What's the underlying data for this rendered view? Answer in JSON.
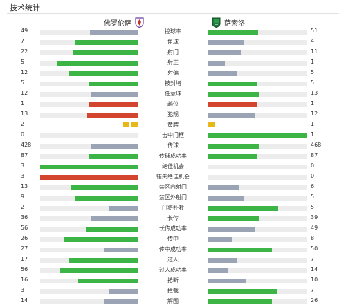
{
  "header": {
    "title": "技术统计"
  },
  "teams": {
    "home": {
      "name": "佛罗伦萨"
    },
    "away": {
      "name": "萨索洛"
    }
  },
  "colors": {
    "green": "#3db446",
    "gray": "#9aa4b4",
    "red": "#d4452f",
    "yellow": "#e8b818",
    "track": "#ececec"
  },
  "stats": [
    {
      "label": "控球率",
      "home": "49",
      "away": "51",
      "home_share": 0.49,
      "away_share": 0.51,
      "home_color": "gray",
      "away_color": "green"
    },
    {
      "label": "角球",
      "home": "7",
      "away": "4",
      "home_share": 0.64,
      "away_share": 0.36,
      "home_color": "green",
      "away_color": "gray"
    },
    {
      "label": "射门",
      "home": "22",
      "away": "11",
      "home_share": 0.67,
      "away_share": 0.33,
      "home_color": "green",
      "away_color": "gray"
    },
    {
      "label": "射正",
      "home": "5",
      "away": "1",
      "home_share": 0.83,
      "away_share": 0.17,
      "home_color": "green",
      "away_color": "gray"
    },
    {
      "label": "射偏",
      "home": "12",
      "away": "5",
      "home_share": 0.71,
      "away_share": 0.29,
      "home_color": "green",
      "away_color": "gray"
    },
    {
      "label": "被封堵",
      "home": "5",
      "away": "5",
      "home_share": 0.5,
      "away_share": 0.5,
      "home_color": "green",
      "away_color": "green"
    },
    {
      "label": "任意球",
      "home": "12",
      "away": "13",
      "home_share": 0.48,
      "away_share": 0.52,
      "home_color": "gray",
      "away_color": "green"
    },
    {
      "label": "越位",
      "home": "1",
      "away": "1",
      "home_share": 0.5,
      "away_share": 0.5,
      "home_color": "red",
      "away_color": "red"
    },
    {
      "label": "犯规",
      "home": "13",
      "away": "12",
      "home_share": 0.52,
      "away_share": 0.48,
      "home_color": "red",
      "away_color": "gray"
    },
    {
      "label": "黄牌",
      "home": "2",
      "away": "1",
      "type": "cards",
      "home_cards": 2,
      "away_cards": 1
    },
    {
      "label": "击中门框",
      "home": "0",
      "away": "1",
      "home_share": 0,
      "away_share": 1,
      "home_color": "gray",
      "away_color": "green"
    },
    {
      "label": "传球",
      "home": "428",
      "away": "468",
      "home_share": 0.48,
      "away_share": 0.52,
      "home_color": "gray",
      "away_color": "green"
    },
    {
      "label": "传球成功率",
      "home": "87",
      "away": "87",
      "home_share": 0.5,
      "away_share": 0.5,
      "home_color": "green",
      "away_color": "green"
    },
    {
      "label": "绝佳机会",
      "home": "3",
      "away": "0",
      "home_share": 1,
      "away_share": 0,
      "home_color": "green",
      "away_color": "gray"
    },
    {
      "label": "错失绝佳机会",
      "home": "3",
      "away": "0",
      "home_share": 1,
      "away_share": 0,
      "home_color": "red",
      "away_color": "gray"
    },
    {
      "label": "禁区内射门",
      "home": "13",
      "away": "6",
      "home_share": 0.68,
      "away_share": 0.32,
      "home_color": "green",
      "away_color": "gray"
    },
    {
      "label": "禁区外射门",
      "home": "9",
      "away": "5",
      "home_share": 0.64,
      "away_share": 0.36,
      "home_color": "green",
      "away_color": "gray"
    },
    {
      "label": "门将扑救",
      "home": "2",
      "away": "5",
      "home_share": 0.29,
      "away_share": 0.71,
      "home_color": "gray",
      "away_color": "green"
    },
    {
      "label": "长传",
      "home": "36",
      "away": "39",
      "home_share": 0.48,
      "away_share": 0.52,
      "home_color": "gray",
      "away_color": "green"
    },
    {
      "label": "长传成功率",
      "home": "56",
      "away": "49",
      "home_share": 0.53,
      "away_share": 0.47,
      "home_color": "green",
      "away_color": "gray"
    },
    {
      "label": "传中",
      "home": "26",
      "away": "8",
      "home_share": 0.76,
      "away_share": 0.24,
      "home_color": "green",
      "away_color": "gray"
    },
    {
      "label": "传中成功率",
      "home": "27",
      "away": "50",
      "home_share": 0.35,
      "away_share": 0.65,
      "home_color": "gray",
      "away_color": "green"
    },
    {
      "label": "过人",
      "home": "17",
      "away": "7",
      "home_share": 0.71,
      "away_share": 0.29,
      "home_color": "green",
      "away_color": "gray"
    },
    {
      "label": "过人成功率",
      "home": "56",
      "away": "14",
      "home_share": 0.8,
      "away_share": 0.2,
      "home_color": "green",
      "away_color": "gray"
    },
    {
      "label": "抢断",
      "home": "16",
      "away": "10",
      "home_share": 0.62,
      "away_share": 0.38,
      "home_color": "green",
      "away_color": "gray"
    },
    {
      "label": "拦截",
      "home": "3",
      "away": "7",
      "home_share": 0.3,
      "away_share": 0.7,
      "home_color": "gray",
      "away_color": "green"
    },
    {
      "label": "解围",
      "home": "14",
      "away": "26",
      "home_share": 0.35,
      "away_share": 0.65,
      "home_color": "gray",
      "away_color": "green"
    }
  ]
}
